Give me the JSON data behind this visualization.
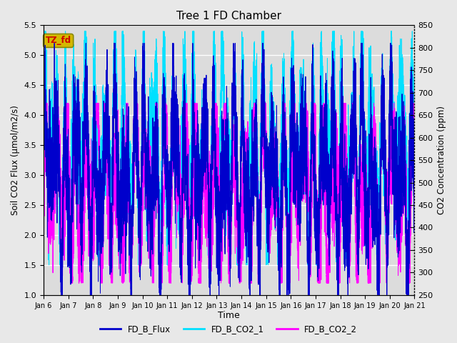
{
  "title": "Tree 1 FD Chamber",
  "xlabel": "Time",
  "ylabel_left": "Soil CO2 Flux (μmol/m2/s)",
  "ylabel_right": "CO2 Concentration (ppm)",
  "ylim_left": [
    1.0,
    5.5
  ],
  "ylim_right": [
    250,
    850
  ],
  "x_tick_labels": [
    "Jan 6",
    "Jan 7",
    "Jan 8",
    "Jan 9",
    "Jan 10",
    "Jan 11",
    "Jan 12",
    "Jan 13",
    "Jan 14",
    "Jan 15",
    "Jan 16",
    "Jan 17",
    "Jan 18",
    "Jan 19",
    "Jan 20",
    "Jan 21"
  ],
  "annotation_text": "TZ_fd",
  "annotation_bg": "#d4b800",
  "annotation_text_color": "#cc0000",
  "flux_color": "#0000cc",
  "co2_1_color": "#00e0ff",
  "co2_2_color": "#ff00ff",
  "legend_labels": [
    "FD_B_Flux",
    "FD_B_CO2_1",
    "FD_B_CO2_2"
  ],
  "bg_color": "#e8e8e8",
  "plot_bg": "#dcdcdc",
  "grid_color": "#ffffff",
  "seed": 42,
  "n_points": 7200,
  "n_days": 15
}
